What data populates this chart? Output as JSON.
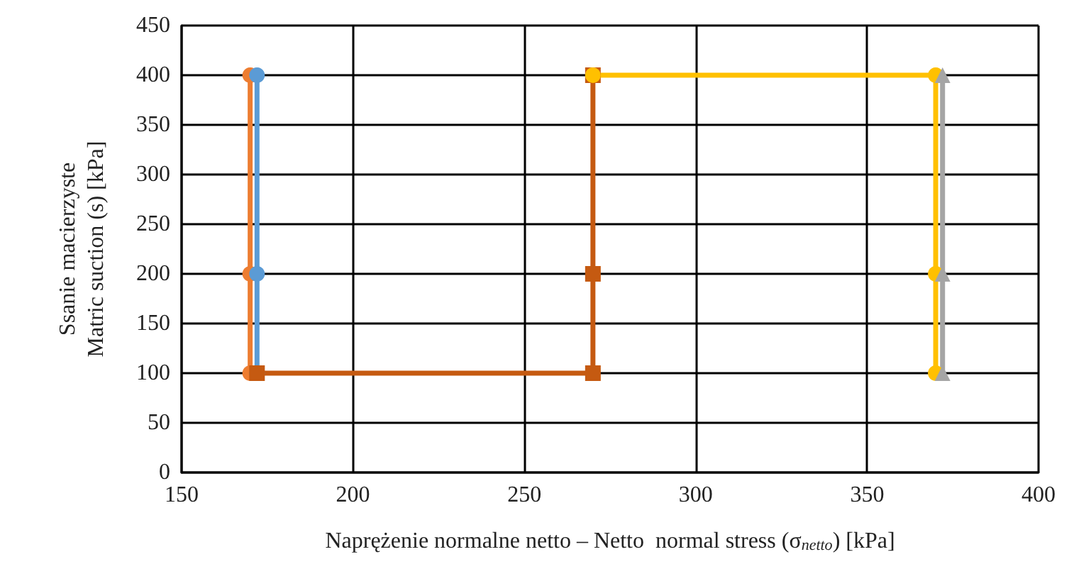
{
  "chart_data": {
    "type": "line",
    "xlabel": "Naprężenie normalne netto – Netto  normal stress (σ$_{netto}$) [kPa]",
    "ylabel": "Ssanie macierzyste\nMatric suction (s) [kPa]",
    "xlim": [
      150,
      400
    ],
    "xticks": [
      150,
      200,
      250,
      300,
      350,
      400
    ],
    "ylim": [
      0,
      450
    ],
    "yticks": [
      0,
      50,
      100,
      150,
      200,
      250,
      300,
      350,
      400,
      450
    ],
    "grid": true,
    "line_style": "solid",
    "series": [
      {
        "color": "#ed7d31",
        "marker": "circle",
        "x": [
          170,
          170,
          170
        ],
        "values": [
          100,
          200,
          400
        ]
      },
      {
        "color": "#5b9bd5",
        "marker": "circle",
        "x": [
          172,
          172,
          172
        ],
        "values": [
          100,
          200,
          400
        ]
      },
      {
        "color": "#c55a11",
        "marker": "square",
        "x": [
          172,
          270,
          270,
          270
        ],
        "values": [
          100,
          100,
          200,
          400
        ]
      },
      {
        "color": "#ffc000",
        "marker": "circle",
        "x": [
          270,
          370,
          370,
          370
        ],
        "values": [
          400,
          400,
          200,
          100
        ]
      },
      {
        "color": "#a5a5a5",
        "marker": "triangle",
        "x": [
          372,
          372,
          372
        ],
        "values": [
          100,
          200,
          400
        ]
      }
    ]
  }
}
